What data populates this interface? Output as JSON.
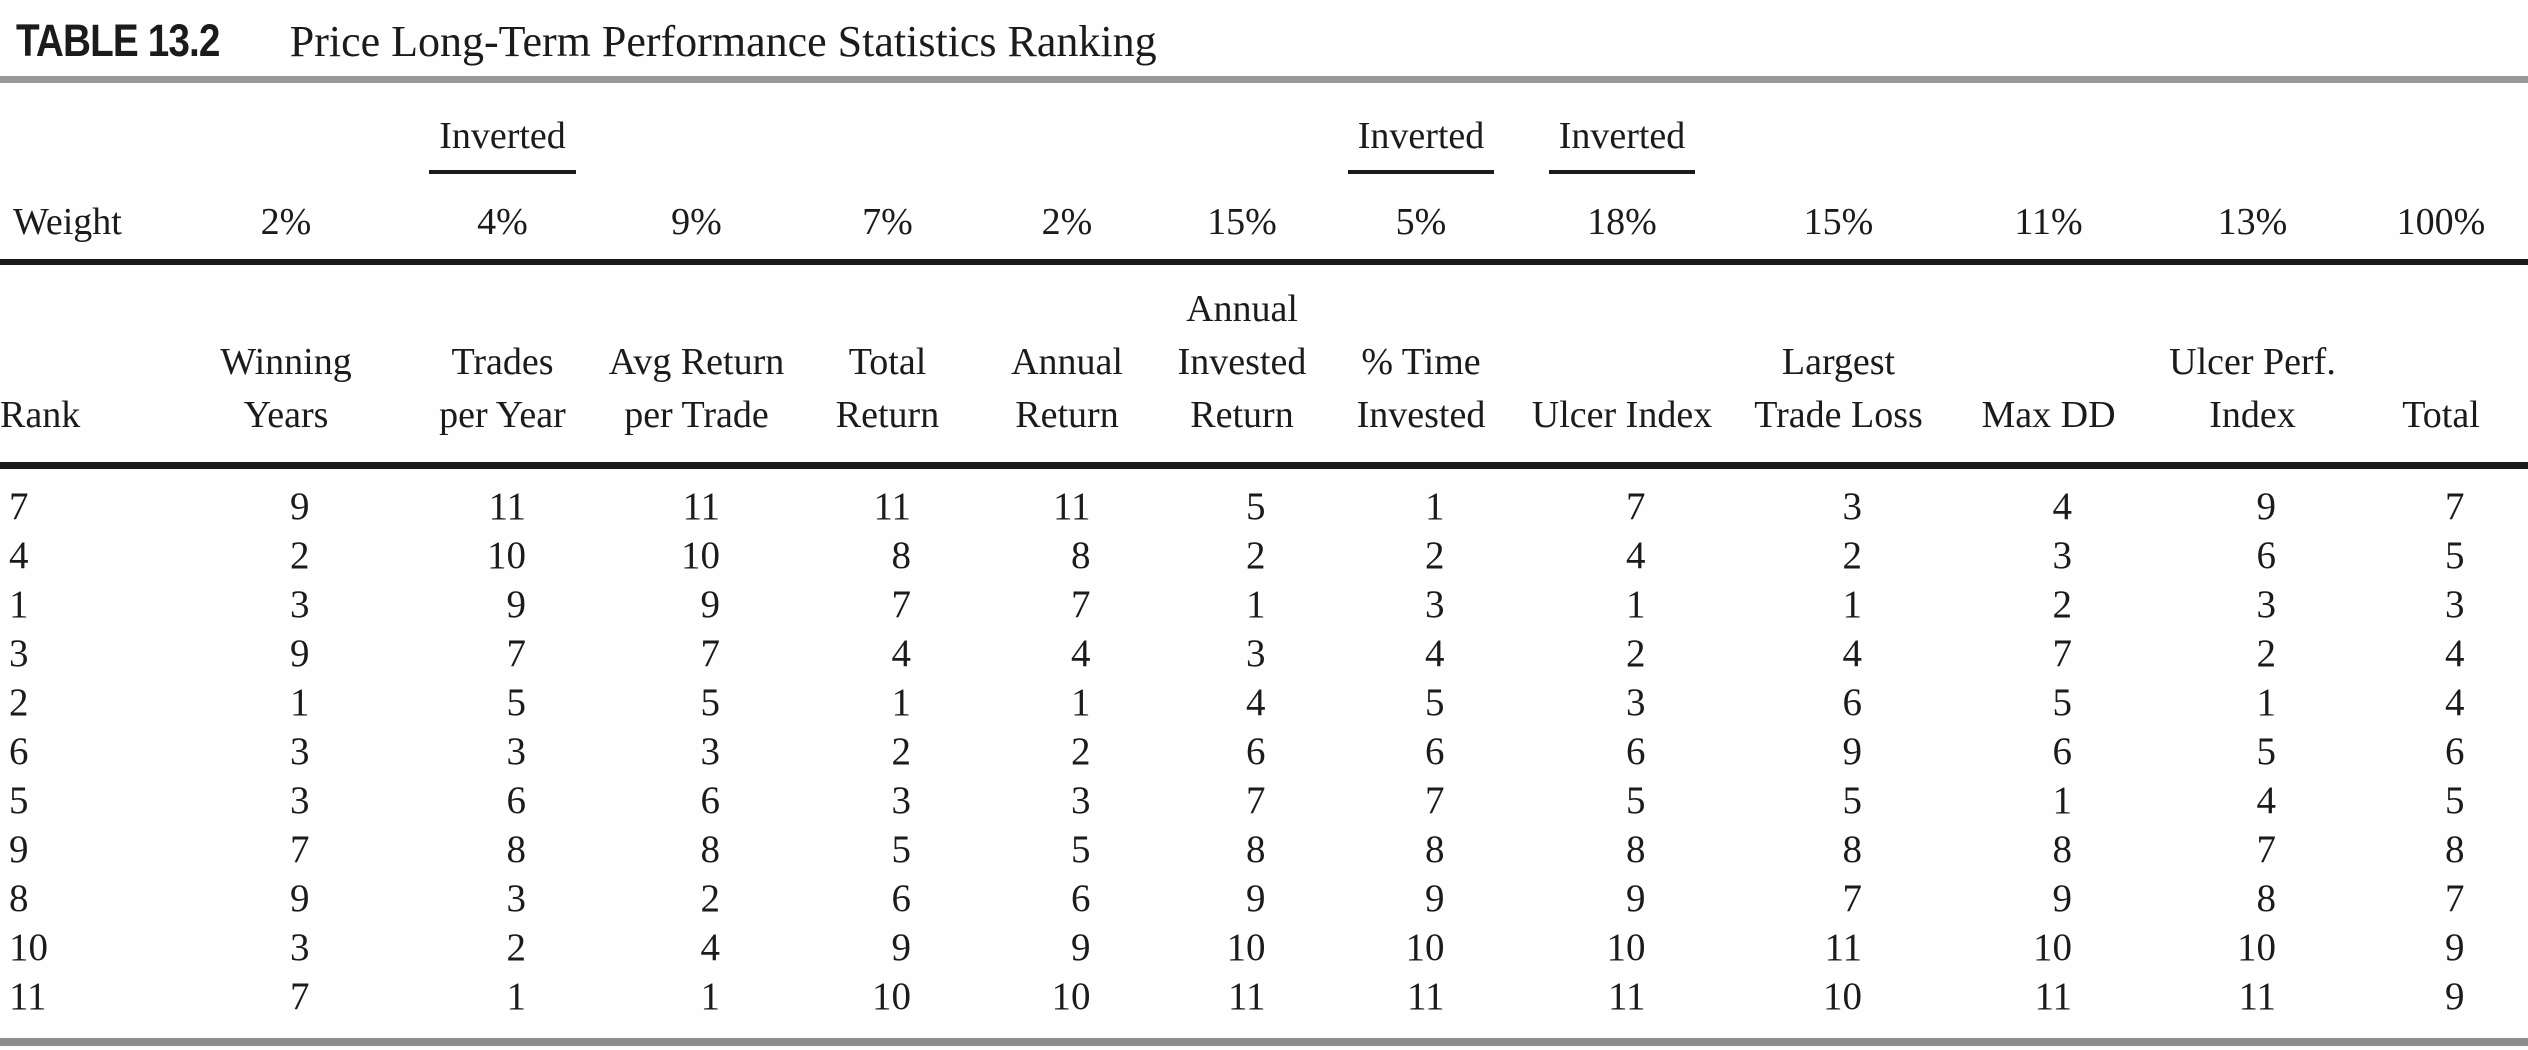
{
  "title": {
    "label": "TABLE 13.2",
    "text": "Price Long-Term Performance Statistics Ranking"
  },
  "colors": {
    "text": "#1b1b1b",
    "rule_black": "#1b1b1b",
    "rule_gray_top": "#97999b",
    "rule_gray_bottom": "#8b8d8f"
  },
  "table": {
    "inverted_label": "Inverted",
    "weight_row_label": "Weight",
    "columns": [
      {
        "header": "Rank",
        "weight": "",
        "inverted": false
      },
      {
        "header": "Winning\nYears",
        "weight": "2%",
        "inverted": false
      },
      {
        "header": "Trades\nper Year",
        "weight": "4%",
        "inverted": true
      },
      {
        "header": "Avg Return\nper Trade",
        "weight": "9%",
        "inverted": false
      },
      {
        "header": "Total\nReturn",
        "weight": "7%",
        "inverted": false
      },
      {
        "header": "Annual\nReturn",
        "weight": "2%",
        "inverted": false
      },
      {
        "header": "Annual\nInvested\nReturn",
        "weight": "15%",
        "inverted": false
      },
      {
        "header": "% Time\nInvested",
        "weight": "5%",
        "inverted": true
      },
      {
        "header": "Ulcer Index",
        "weight": "18%",
        "inverted": true
      },
      {
        "header": "Largest\nTrade Loss",
        "weight": "15%",
        "inverted": false
      },
      {
        "header": "Max DD",
        "weight": "11%",
        "inverted": false
      },
      {
        "header": "Ulcer Perf.\nIndex",
        "weight": "13%",
        "inverted": false
      },
      {
        "header": "Total",
        "weight": "100%",
        "inverted": false
      }
    ],
    "rows": [
      [
        7,
        9,
        11,
        11,
        11,
        11,
        5,
        1,
        7,
        3,
        4,
        9,
        7
      ],
      [
        4,
        2,
        10,
        10,
        8,
        8,
        2,
        2,
        4,
        2,
        3,
        6,
        5
      ],
      [
        1,
        3,
        9,
        9,
        7,
        7,
        1,
        3,
        1,
        1,
        2,
        3,
        3
      ],
      [
        3,
        9,
        7,
        7,
        4,
        4,
        3,
        4,
        2,
        4,
        7,
        2,
        4
      ],
      [
        2,
        1,
        5,
        5,
        1,
        1,
        4,
        5,
        3,
        6,
        5,
        1,
        4
      ],
      [
        6,
        3,
        3,
        3,
        2,
        2,
        6,
        6,
        6,
        9,
        6,
        5,
        6
      ],
      [
        5,
        3,
        6,
        6,
        3,
        3,
        7,
        7,
        5,
        5,
        1,
        4,
        5
      ],
      [
        9,
        7,
        8,
        8,
        5,
        5,
        8,
        8,
        8,
        8,
        8,
        7,
        8
      ],
      [
        8,
        9,
        3,
        2,
        6,
        6,
        9,
        9,
        9,
        7,
        9,
        8,
        7
      ],
      [
        10,
        3,
        2,
        4,
        9,
        9,
        10,
        10,
        10,
        11,
        10,
        10,
        9
      ],
      [
        11,
        7,
        1,
        1,
        10,
        10,
        11,
        11,
        11,
        10,
        11,
        11,
        9
      ]
    ]
  }
}
